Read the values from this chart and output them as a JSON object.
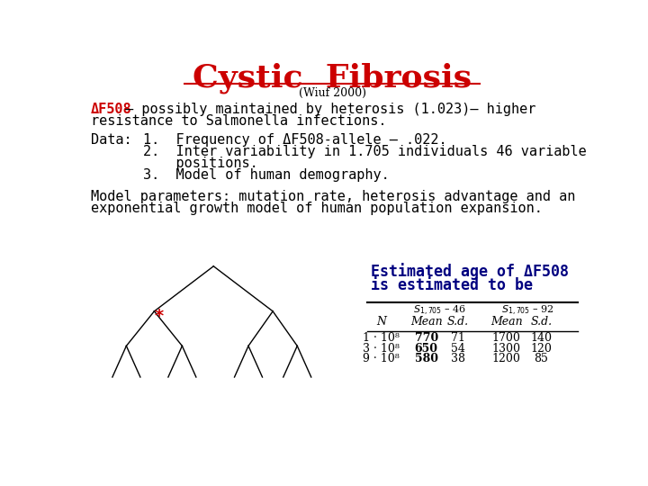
{
  "title": "Cystic  Fibrosis",
  "subtitle": "(Wiuf 2000)",
  "title_color": "#cc0000",
  "subtitle_color": "#000000",
  "body_color": "#000000",
  "delta_color": "#cc0000",
  "blue_color": "#000080",
  "line1a_delta": "ΔF508",
  "line1b": " – possibly maintained by heterosis (1.023)– higher",
  "line2": "resistance to Salmonella infections.",
  "data_label": "Data:",
  "data_item1": "1.  Frequency of ΔF508-allele – .022.",
  "data_item2": "2.  Inter variability in 1.705 individuals 46 variable",
  "data_item2b": "    positions.",
  "data_item3": "3.  Model of human demography.",
  "model_line1": "Model parameters: mutation rate, heterosis advantage and an",
  "model_line2": "exponential growth model of human population expansion.",
  "est_title1": "Estimated age of ΔF508",
  "est_title2": "is estimated to be",
  "table_headers": [
    "N",
    "Mean",
    "S.d.",
    "Mean",
    "S.d."
  ],
  "table_rows": [
    [
      "1 · 10⁸",
      "770",
      "71",
      "1700",
      "140"
    ],
    [
      "3 · 10⁸",
      "650",
      "54",
      "1300",
      "120"
    ],
    [
      "9 · 10⁸",
      "580",
      "38",
      "1200",
      "85"
    ]
  ],
  "background_color": "#ffffff"
}
